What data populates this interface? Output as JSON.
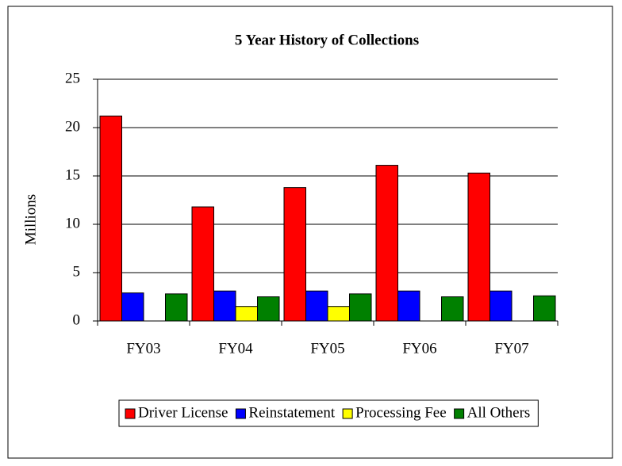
{
  "chart_data": {
    "type": "bar",
    "title": "5 Year History of Collections",
    "y_label": "Millions",
    "categories": [
      "FY03",
      "FY04",
      "FY05",
      "FY06",
      "FY07"
    ],
    "series": [
      {
        "name": "Driver License",
        "color": "#ff0000",
        "values": [
          21.2,
          11.8,
          13.8,
          16.1,
          15.3
        ]
      },
      {
        "name": "Reinstatement",
        "color": "#0000ff",
        "values": [
          2.9,
          3.1,
          3.1,
          3.1,
          3.1
        ]
      },
      {
        "name": "Processing Fee",
        "color": "#ffff00",
        "values": [
          null,
          1.5,
          1.5,
          null,
          null
        ]
      },
      {
        "name": "All Others",
        "color": "#008000",
        "values": [
          2.8,
          2.5,
          2.8,
          2.5,
          2.6
        ]
      }
    ],
    "ylim": [
      0,
      25
    ],
    "yticks": [
      0,
      5,
      10,
      15,
      20,
      25
    ],
    "grid": true,
    "legend": "bottom"
  }
}
